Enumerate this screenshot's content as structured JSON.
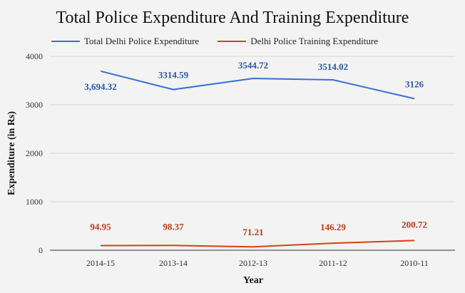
{
  "chart_data": {
    "type": "line",
    "title": "Total Police Expenditure And Training Expenditure",
    "xlabel": "Year",
    "ylabel": "Expenditure (in Rs)",
    "categories": [
      "2014-15",
      "2013-14",
      "2012-13",
      "2011-12",
      "2010-11"
    ],
    "ylim": [
      0,
      4000
    ],
    "yticks": [
      0,
      1000,
      2000,
      3000,
      4000
    ],
    "grid": true,
    "legend_position": "top-left",
    "series": [
      {
        "name": "Total Delhi Police Expenditure",
        "color": "#3c6fd0",
        "values": [
          3694.32,
          3314.59,
          3544.72,
          3514.02,
          3126
        ],
        "labels": [
          "3,694.32",
          "3314.59",
          "3544.72",
          "3514.02",
          "3126"
        ]
      },
      {
        "name": "Delhi Police Training Expenditure",
        "color": "#d6401b",
        "values": [
          94.95,
          98.37,
          71.21,
          146.29,
          200.72
        ],
        "labels": [
          "94.95",
          "98.37",
          "71.21",
          "146.29",
          "200.72"
        ]
      }
    ]
  }
}
